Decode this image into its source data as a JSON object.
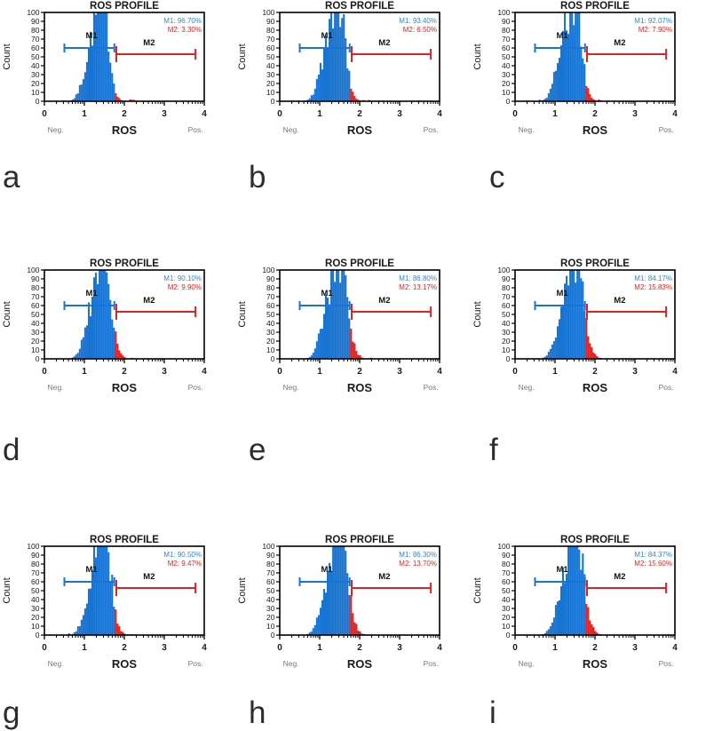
{
  "figure": {
    "background": "#ffffff"
  },
  "chart_data": {
    "type": "histogram",
    "layout": "3x3-grid",
    "shared": {
      "title": "ROS PROFILE",
      "xlabel": "ROS",
      "ylabel": "Count",
      "neg_label": "Neg.",
      "pos_label": "Pos.",
      "x_ticks": [
        0,
        1,
        2,
        3,
        4
      ],
      "y_ticks": [
        0,
        10,
        20,
        30,
        40,
        50,
        60,
        70,
        80,
        90,
        100
      ],
      "xlim": [
        0,
        4
      ],
      "ylim": [
        0,
        100
      ],
      "x_scale": "linear-with-log-decade-minor-ticks",
      "peak_x": 1.5,
      "threshold_x": 1.77,
      "m1_gate": {
        "label": "M1",
        "from": 0.5,
        "to": 1.75,
        "y": 60,
        "color": "#1874d2"
      },
      "m2_gate": {
        "label": "M2",
        "from": 1.8,
        "to": 3.78,
        "y": 53,
        "color": "#e02222"
      },
      "hist_color_m1": "#1874d2",
      "hist_color_m2": "#e02222",
      "legend_color_m1": "#2e86e0",
      "legend_color_m2": "#e02222",
      "axis_color": "#000000",
      "text_color": "#1a1a1a",
      "muted_text_color": "#777777"
    },
    "panels": [
      {
        "letter": "a",
        "m1_text": "M1: 96.70%",
        "m2_text": "M2: 3.30%",
        "m1_pct": 96.7,
        "m2_pct": 3.3
      },
      {
        "letter": "b",
        "m1_text": "M1: 93.40%",
        "m2_text": "M2: 6.50%",
        "m1_pct": 93.4,
        "m2_pct": 6.5
      },
      {
        "letter": "c",
        "m1_text": "M1: 92.07%",
        "m2_text": "M2: 7.90%",
        "m1_pct": 92.07,
        "m2_pct": 7.9
      },
      {
        "letter": "d",
        "m1_text": "M1: 90.10%",
        "m2_text": "M2: 9.90%",
        "m1_pct": 90.1,
        "m2_pct": 9.9
      },
      {
        "letter": "e",
        "m1_text": "M1: 86.80%",
        "m2_text": "M2: 13.17%",
        "m1_pct": 86.8,
        "m2_pct": 13.17
      },
      {
        "letter": "f",
        "m1_text": "M1: 84.17%",
        "m2_text": "M2: 15.83%",
        "m1_pct": 84.17,
        "m2_pct": 15.83
      },
      {
        "letter": "g",
        "m1_text": "M1: 90.50%",
        "m2_text": "M2: 9.47%",
        "m1_pct": 90.5,
        "m2_pct": 9.47
      },
      {
        "letter": "h",
        "m1_text": "M1: 86.30%",
        "m2_text": "M2: 13.70%",
        "m1_pct": 86.3,
        "m2_pct": 13.7
      },
      {
        "letter": "i",
        "m1_text": "M1: 84.37%",
        "m2_text": "M2: 15.60%",
        "m1_pct": 84.37,
        "m2_pct": 15.6
      }
    ]
  }
}
